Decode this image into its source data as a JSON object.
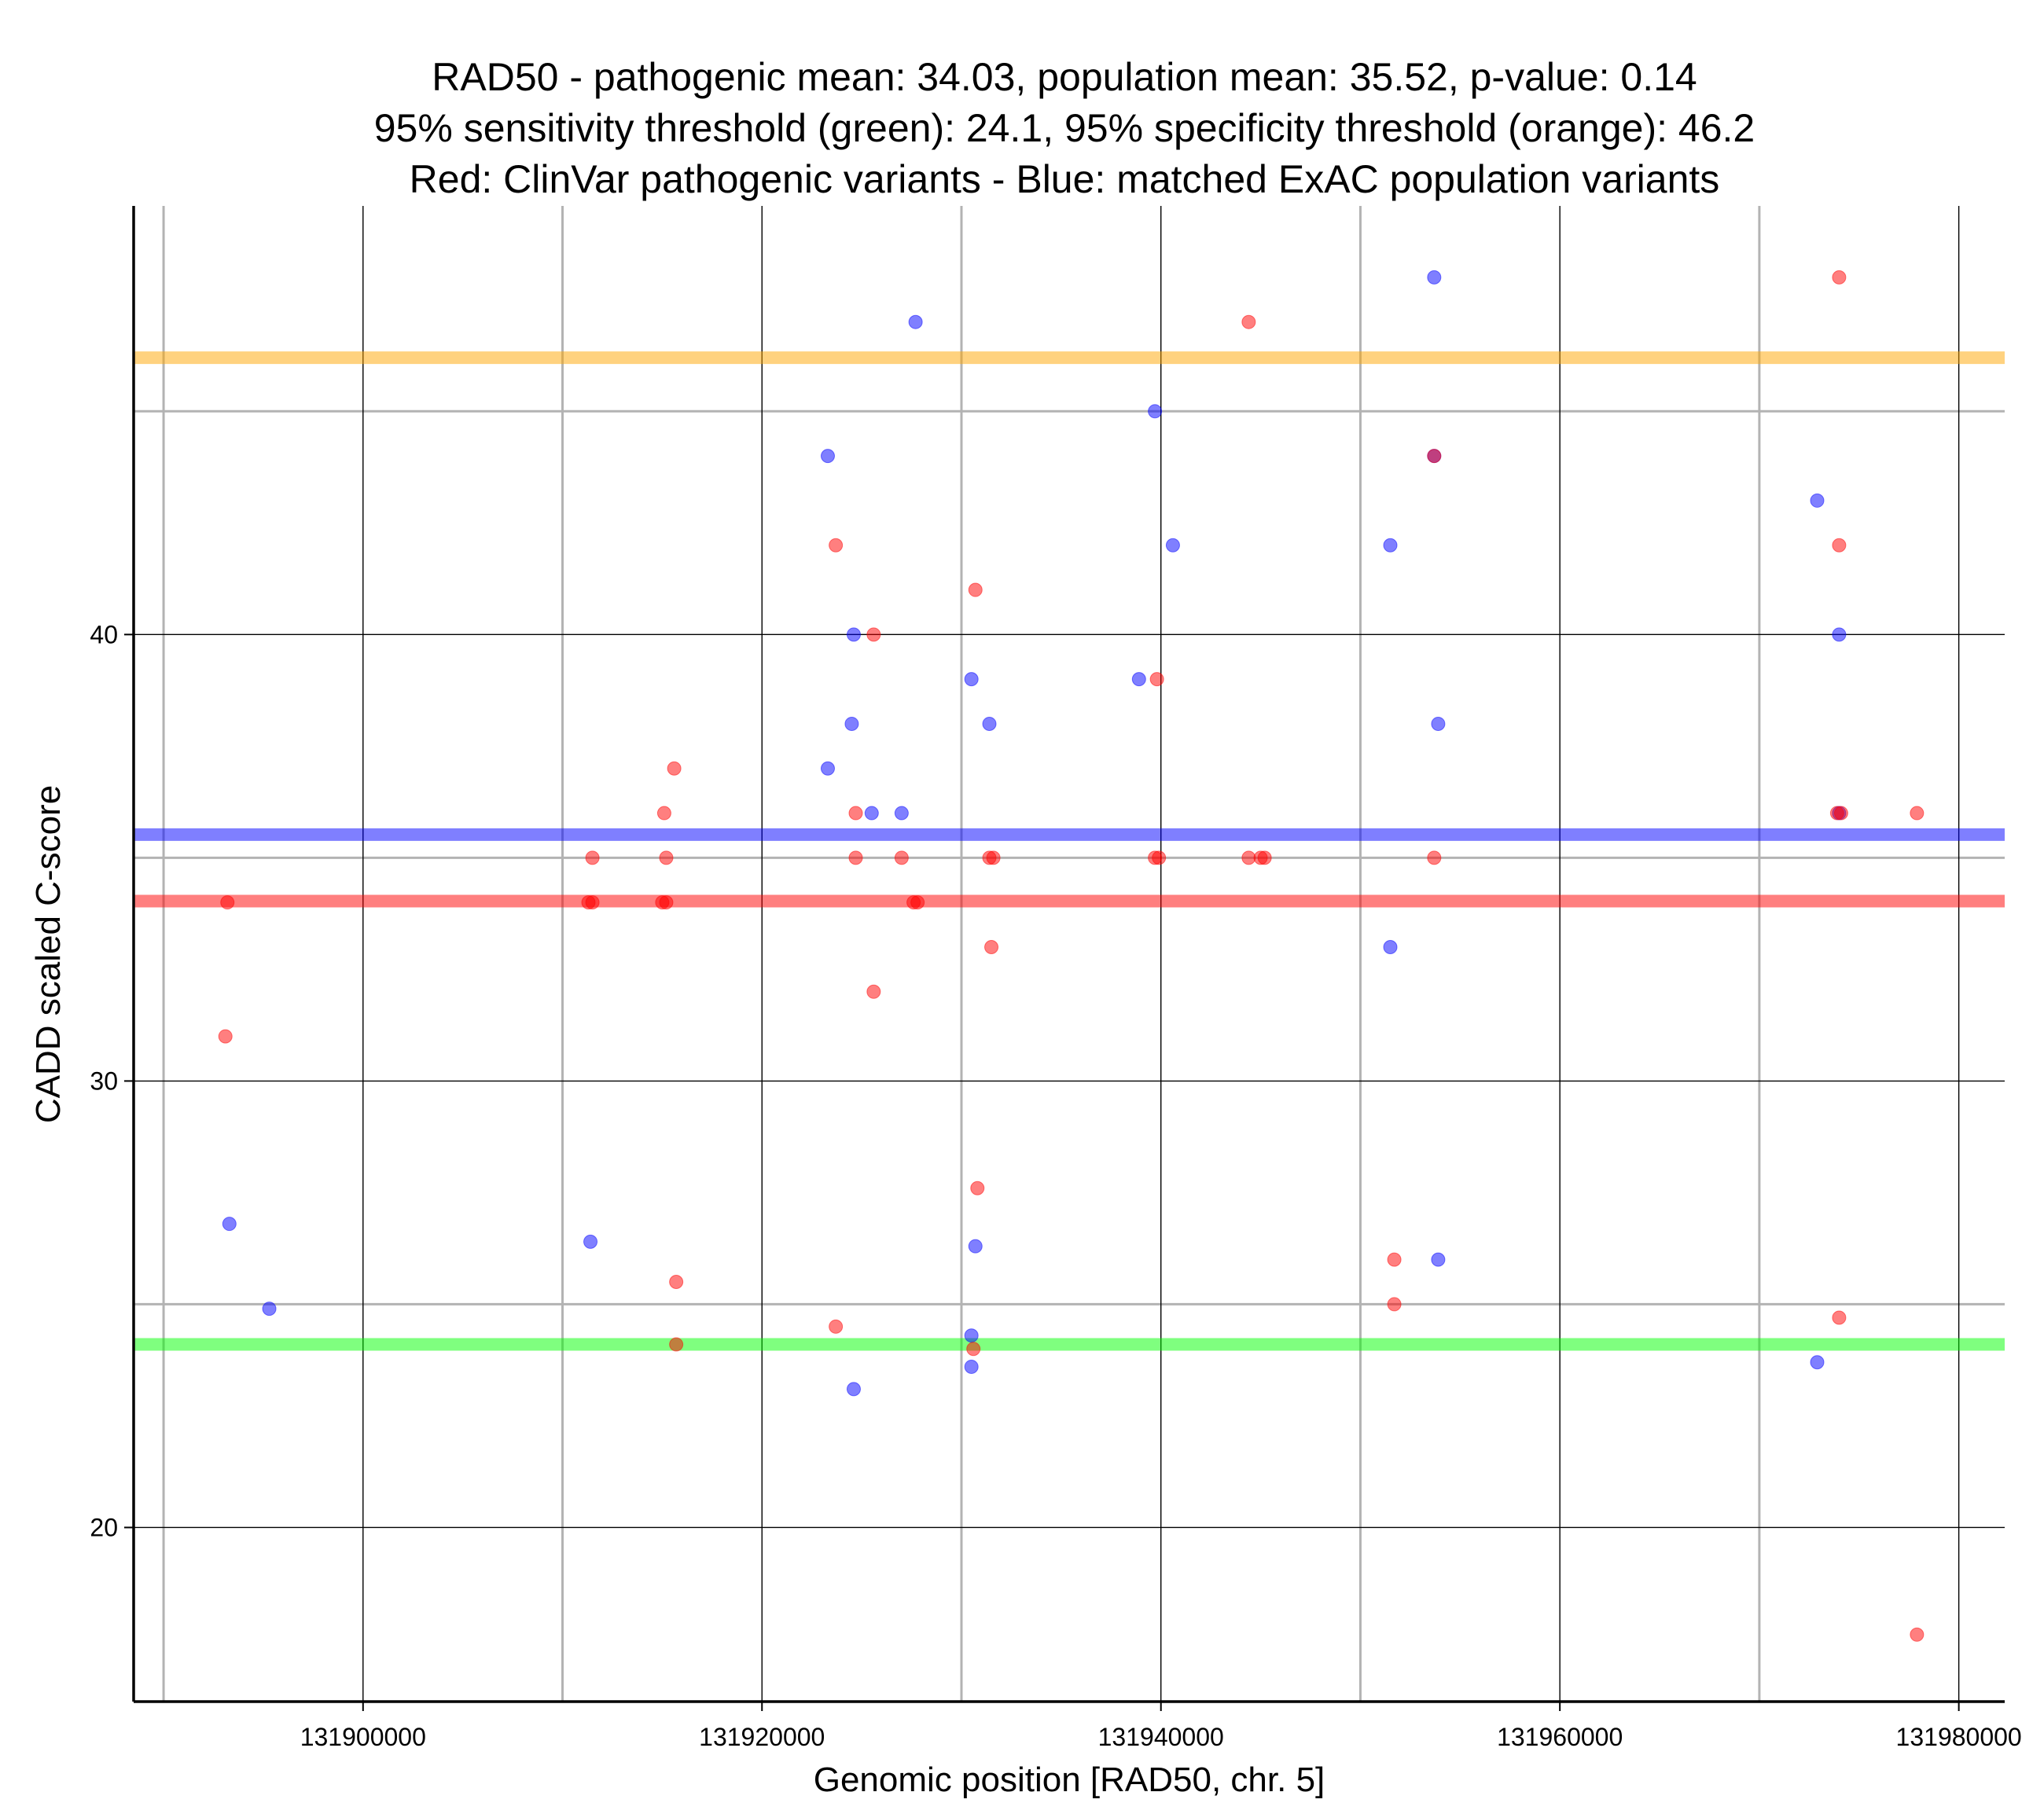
{
  "chart_data": {
    "type": "scatter",
    "title_lines": [
      "RAD50 - pathogenic mean: 34.03, population mean: 35.52, p-value: 0.14",
      "95% sensitivity threshold (green): 24.1, 95% specificity threshold (orange): 46.2",
      "Red: ClinVar pathogenic variants - Blue: matched ExAC population variants"
    ],
    "xlabel": "Genomic position [RAD50, chr. 5]",
    "ylabel": "CADD scaled C-score",
    "xlim": [
      131888500,
      131982300
    ],
    "ylim": [
      16.1,
      49.6
    ],
    "x_ticks": [
      131900000,
      131920000,
      131940000,
      131960000,
      131980000
    ],
    "x_tick_labels": [
      "131900000",
      "131920000",
      "131940000",
      "131960000",
      "131980000"
    ],
    "x_minor_gridlines": [
      131890000,
      131910000,
      131930000,
      131950000,
      131970000
    ],
    "y_ticks": [
      20,
      30,
      40
    ],
    "y_tick_labels": [
      "20",
      "30",
      "40"
    ],
    "y_minor_gridlines": [
      25,
      35,
      45
    ],
    "reference_lines": [
      {
        "name": "95% specificity threshold",
        "value": 46.2,
        "color": "#ffa500"
      },
      {
        "name": "population mean",
        "value": 35.52,
        "color": "#0000ff"
      },
      {
        "name": "pathogenic mean",
        "value": 34.03,
        "color": "#ff0000"
      },
      {
        "name": "95% sensitivity threshold",
        "value": 24.1,
        "color": "#00ff00"
      }
    ],
    "series": [
      {
        "name": "ExAC population variants",
        "color": "#0000ff",
        "points": [
          [
            131927700,
            47
          ],
          [
            131953700,
            48
          ],
          [
            131939700,
            45
          ],
          [
            131923300,
            44
          ],
          [
            131953700,
            44
          ],
          [
            131972900,
            43
          ],
          [
            131940600,
            42
          ],
          [
            131951500,
            42
          ],
          [
            131924600,
            40
          ],
          [
            131974000,
            40
          ],
          [
            131930500,
            39
          ],
          [
            131938900,
            39
          ],
          [
            131924500,
            38
          ],
          [
            131931400,
            38
          ],
          [
            131953900,
            38
          ],
          [
            131923300,
            37
          ],
          [
            131925500,
            36
          ],
          [
            131927000,
            36
          ],
          [
            131974000,
            36
          ],
          [
            131951500,
            33
          ],
          [
            131893300,
            26.8
          ],
          [
            131911400,
            26.4
          ],
          [
            131930700,
            26.3
          ],
          [
            131953900,
            26
          ],
          [
            131895300,
            24.9
          ],
          [
            131930500,
            24.3
          ],
          [
            131930500,
            23.6
          ],
          [
            131972900,
            23.7
          ],
          [
            131924600,
            23.1
          ]
        ]
      },
      {
        "name": "ClinVar pathogenic variants",
        "color": "#ff0000",
        "points": [
          [
            131974000,
            48
          ],
          [
            131944400,
            47
          ],
          [
            131953700,
            44
          ],
          [
            131923700,
            42
          ],
          [
            131974000,
            42
          ],
          [
            131930700,
            41
          ],
          [
            131925600,
            40
          ],
          [
            131939800,
            39
          ],
          [
            131915600,
            37
          ],
          [
            131915100,
            36
          ],
          [
            131924700,
            36
          ],
          [
            131973900,
            36
          ],
          [
            131974100,
            36
          ],
          [
            131977900,
            36
          ],
          [
            131911500,
            35
          ],
          [
            131915200,
            35
          ],
          [
            131924700,
            35
          ],
          [
            131927000,
            35
          ],
          [
            131931400,
            35
          ],
          [
            131931600,
            35
          ],
          [
            131939700,
            35
          ],
          [
            131939900,
            35
          ],
          [
            131944400,
            35
          ],
          [
            131945000,
            35
          ],
          [
            131945200,
            35
          ],
          [
            131953700,
            35
          ],
          [
            131893200,
            34
          ],
          [
            131911300,
            34
          ],
          [
            131911500,
            34
          ],
          [
            131915000,
            34
          ],
          [
            131915200,
            34
          ],
          [
            131927600,
            34
          ],
          [
            131927800,
            34
          ],
          [
            131931500,
            33
          ],
          [
            131925600,
            32
          ],
          [
            131893100,
            31
          ],
          [
            131930800,
            27.6
          ],
          [
            131951700,
            26
          ],
          [
            131915700,
            25.5
          ],
          [
            131951700,
            25
          ],
          [
            131974000,
            24.7
          ],
          [
            131923700,
            24.5
          ],
          [
            131915700,
            24.1
          ],
          [
            131930600,
            24
          ],
          [
            131977900,
            17.6
          ]
        ]
      }
    ]
  }
}
